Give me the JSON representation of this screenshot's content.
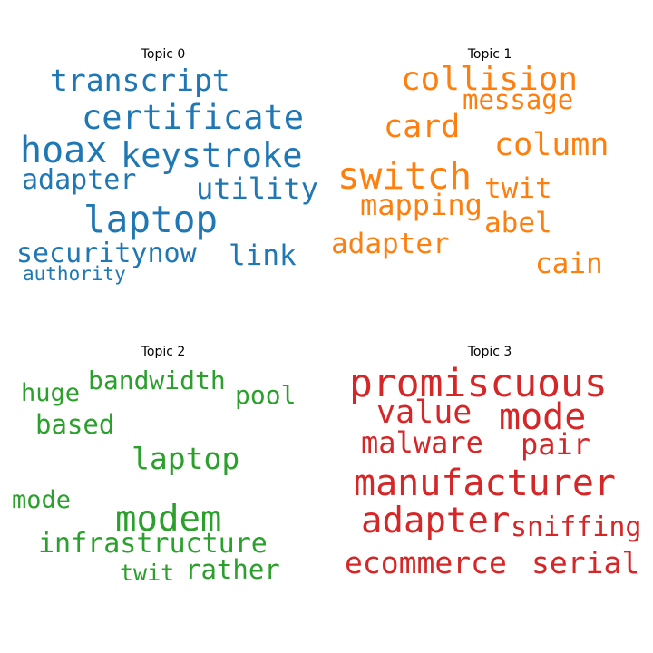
{
  "topics": [
    {
      "title": "Topic 0",
      "color": "#1f77b4",
      "words": [
        "transcript",
        "certificate",
        "hoax",
        "keystroke",
        "adapter",
        "utility",
        "laptop",
        "securitynow",
        "link",
        "authority"
      ]
    },
    {
      "title": "Topic 1",
      "color": "#ff7f0e",
      "words": [
        "collision",
        "message",
        "card",
        "column",
        "switch",
        "twit",
        "mapping",
        "abel",
        "adapter",
        "cain"
      ]
    },
    {
      "title": "Topic 2",
      "color": "#2ca02c",
      "words": [
        "bandwidth",
        "huge",
        "pool",
        "based",
        "laptop",
        "mode",
        "modem",
        "infrastructure",
        "twit",
        "rather"
      ]
    },
    {
      "title": "Topic 3",
      "color": "#d62728",
      "words": [
        "promiscuous",
        "value",
        "mode",
        "malware",
        "pair",
        "manufacturer",
        "adapter",
        "sniffing",
        "ecommerce",
        "serial"
      ]
    }
  ]
}
